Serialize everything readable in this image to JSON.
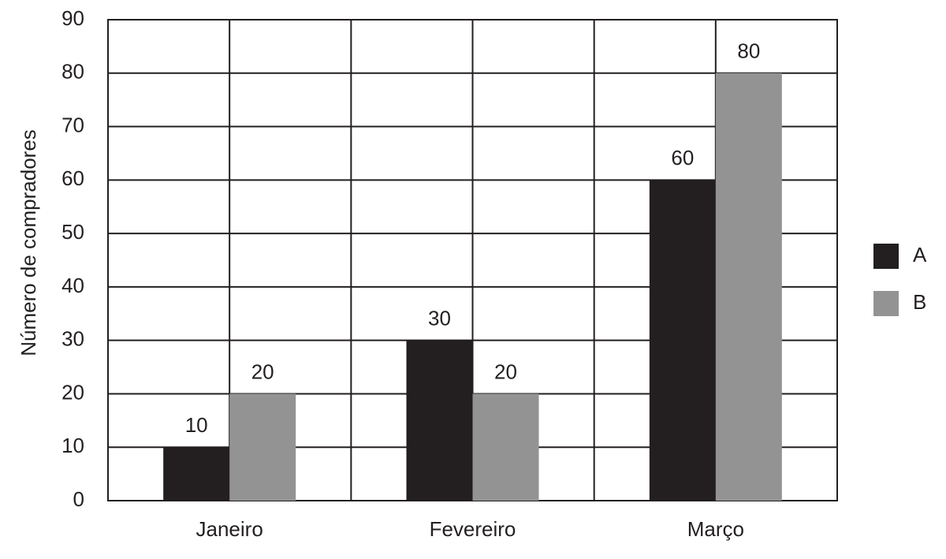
{
  "chart_data": {
    "type": "bar",
    "y_label": "Número de compradores",
    "categories": [
      "Janeiro",
      "Fevereiro",
      "Março"
    ],
    "series": [
      {
        "name": "A",
        "color": "#231f20",
        "values": [
          10,
          30,
          60
        ]
      },
      {
        "name": "B",
        "color": "#939393",
        "values": [
          20,
          20,
          80
        ]
      }
    ],
    "ylim": [
      0,
      90
    ],
    "yticks": [
      0,
      10,
      20,
      30,
      40,
      50,
      60,
      70,
      80,
      90
    ],
    "grid": true,
    "legend": "right"
  }
}
